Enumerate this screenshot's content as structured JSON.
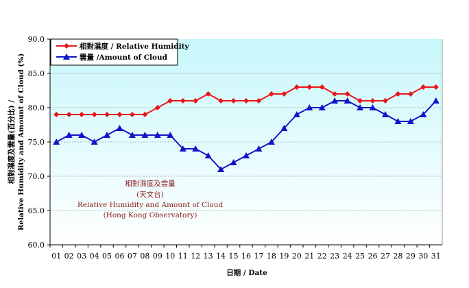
{
  "chart_data": {
    "type": "line",
    "title": "",
    "annotation": [
      "相對濕度及雲量",
      "(天文台)",
      "Relative Humidity and Amount of Cloud",
      "(Hong Kong Observatory)"
    ],
    "xlabel": "日期 / Date",
    "ylabel": [
      "相對濕度及雲量(百分比) /",
      "Relative Humidity and Amount of Cloud (%)"
    ],
    "ylim": [
      60,
      90
    ],
    "yticks": [
      "60.0",
      "65.0",
      "70.0",
      "75.0",
      "80.0",
      "85.0",
      "90.0"
    ],
    "grid": "horizontal dashed",
    "legend_placement": "top-left",
    "categories": [
      "01",
      "02",
      "03",
      "04",
      "05",
      "06",
      "07",
      "08",
      "09",
      "10",
      "11",
      "12",
      "13",
      "14",
      "15",
      "16",
      "17",
      "18",
      "19",
      "20",
      "21",
      "22",
      "23",
      "24",
      "25",
      "26",
      "27",
      "28",
      "29",
      "30",
      "31"
    ],
    "series": [
      {
        "name": "相對濕度 / Relative Humidity",
        "color": "#e8161b",
        "marker": "diamond",
        "values": [
          79,
          79,
          79,
          79,
          79,
          79,
          79,
          79,
          80,
          81,
          81,
          81,
          82,
          81,
          81,
          81,
          81,
          82,
          82,
          83,
          83,
          83,
          82,
          82,
          81,
          81,
          81,
          82,
          82,
          83,
          83
        ]
      },
      {
        "name": "雲量 /Amount of Cloud",
        "color": "#1313c8",
        "marker": "triangle",
        "values": [
          75,
          76,
          76,
          75,
          76,
          77,
          76,
          76,
          76,
          76,
          74,
          74,
          73,
          71,
          72,
          73,
          74,
          75,
          77,
          79,
          80,
          80,
          81,
          81,
          80,
          80,
          79,
          78,
          78,
          79,
          81
        ]
      }
    ],
    "background_gradient": [
      "#c8f7fb",
      "#ffffff"
    ]
  }
}
